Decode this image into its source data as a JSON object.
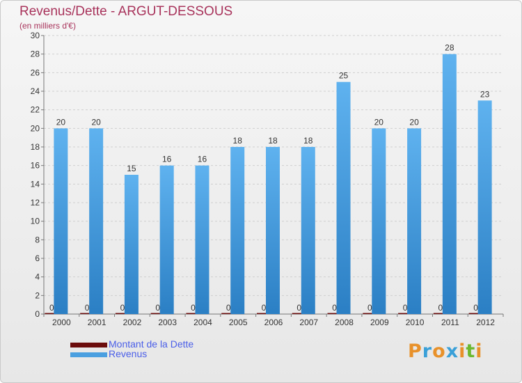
{
  "chart_data": {
    "type": "bar",
    "title": "Revenus/Dette - ARGUT-DESSOUS",
    "subtitle": "(en milliers d'€)",
    "xlabel": "",
    "ylabel": "",
    "ylim": [
      0,
      30
    ],
    "yticks": [
      0,
      2,
      4,
      6,
      8,
      10,
      12,
      14,
      16,
      18,
      20,
      22,
      24,
      26,
      28,
      30
    ],
    "grid": true,
    "legend_position": "bottom-left",
    "categories": [
      "2000",
      "2001",
      "2002",
      "2003",
      "2004",
      "2005",
      "2006",
      "2007",
      "2008",
      "2009",
      "2010",
      "2011",
      "2012"
    ],
    "series": [
      {
        "name": "Montant de la Dette",
        "color": "#6b0c0c",
        "values": [
          0,
          0,
          0,
          0,
          0,
          0,
          0,
          0,
          0,
          0,
          0,
          0,
          0
        ]
      },
      {
        "name": "Revenus",
        "color": "#4a9fe0",
        "values": [
          20,
          20,
          15,
          16,
          16,
          18,
          18,
          18,
          25,
          20,
          20,
          28,
          23
        ]
      }
    ]
  },
  "logo": {
    "text": "Proxiti",
    "colors": [
      "#e8912a",
      "#3aa0d8",
      "#e8912a",
      "#3aa0d8",
      "#e8912a",
      "#6cb82f",
      "#e8912a"
    ]
  }
}
